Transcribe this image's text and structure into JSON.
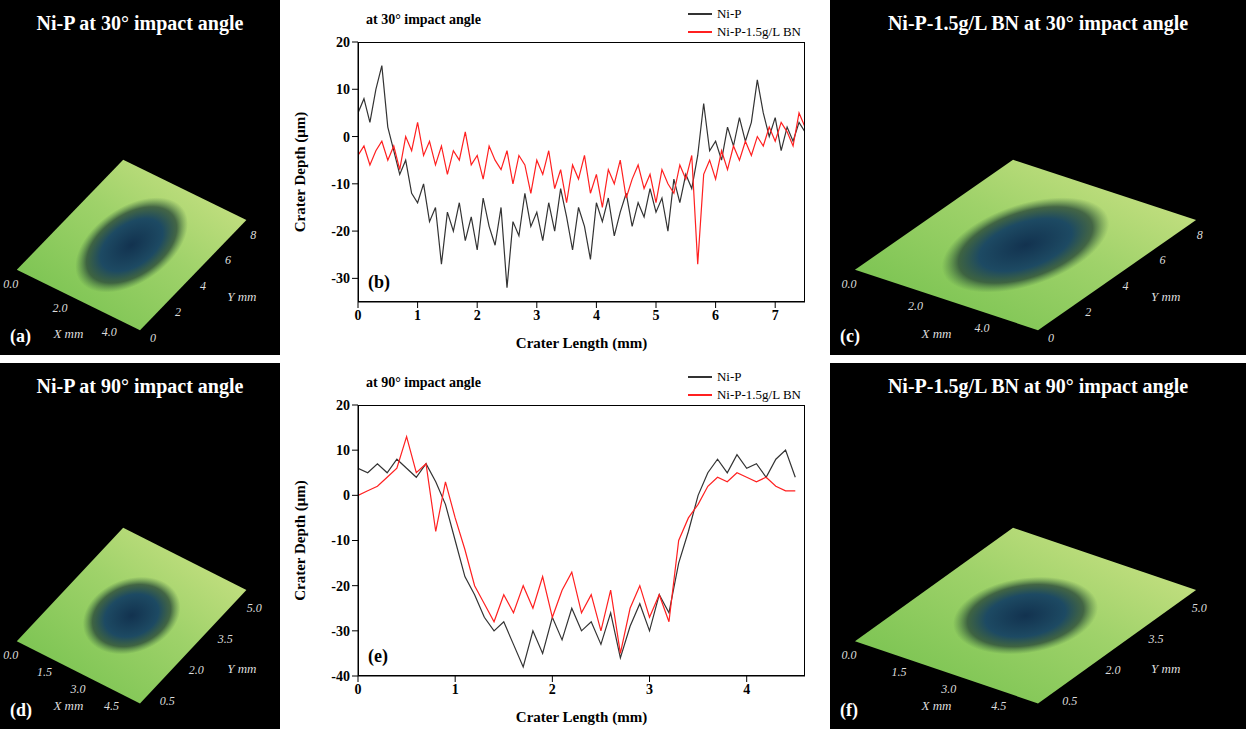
{
  "chart_data": [
    {
      "type": "surface_image",
      "panel": "(a)",
      "title": "Ni-P at 30° impact angle",
      "x_label": "X mm",
      "y_label": "Y mm",
      "xlim": [
        0,
        5
      ],
      "ylim": [
        0,
        8.5
      ],
      "xticks": [
        {
          "value": 0,
          "label": "0.0"
        },
        {
          "value": 2,
          "label": "2.0"
        },
        {
          "value": 4,
          "label": "4.0"
        }
      ],
      "yticks": [
        0,
        2,
        4,
        6,
        8
      ]
    },
    {
      "type": "line",
      "panel": "(b)",
      "annotation": "at 30° impact angle",
      "x_label": "Crater Length (mm)",
      "y_label": "Crater Depth (μm)",
      "xlim": [
        0,
        7.5
      ],
      "ylim": [
        -35,
        20
      ],
      "xticks": [
        0,
        1,
        2,
        3,
        4,
        5,
        6,
        7
      ],
      "yticks": [
        -30,
        -20,
        -10,
        0,
        10,
        20
      ],
      "legend": "top right",
      "x": [
        0,
        0.1,
        0.2,
        0.3,
        0.4,
        0.5,
        0.6,
        0.7,
        0.8,
        0.9,
        1.0,
        1.1,
        1.2,
        1.3,
        1.4,
        1.5,
        1.6,
        1.7,
        1.8,
        1.9,
        2.0,
        2.1,
        2.2,
        2.3,
        2.4,
        2.5,
        2.6,
        2.7,
        2.8,
        2.9,
        3.0,
        3.1,
        3.2,
        3.3,
        3.4,
        3.5,
        3.6,
        3.7,
        3.8,
        3.9,
        4.0,
        4.1,
        4.2,
        4.3,
        4.4,
        4.5,
        4.6,
        4.7,
        4.8,
        4.9,
        5.0,
        5.1,
        5.2,
        5.3,
        5.4,
        5.5,
        5.6,
        5.7,
        5.8,
        5.9,
        6.0,
        6.1,
        6.2,
        6.3,
        6.4,
        6.5,
        6.6,
        6.7,
        6.8,
        6.9,
        7.0,
        7.1,
        7.2,
        7.3,
        7.4,
        7.5
      ],
      "series": [
        {
          "name": "Ni-P",
          "color": "#333333",
          "values": [
            5,
            8,
            3,
            10,
            15,
            2,
            -3,
            -8,
            -5,
            -12,
            -14,
            -10,
            -18,
            -15,
            -27,
            -16,
            -20,
            -14,
            -22,
            -17,
            -24,
            -13,
            -19,
            -23,
            -15,
            -32,
            -18,
            -21,
            -12,
            -19,
            -16,
            -22,
            -14,
            -20,
            -11,
            -17,
            -24,
            -15,
            -19,
            -26,
            -14,
            -18,
            -13,
            -21,
            -16,
            -12,
            -19,
            -14,
            -17,
            -11,
            -16,
            -13,
            -20,
            -9,
            -14,
            -8,
            -11,
            -4,
            7,
            -3,
            -1,
            -5,
            2,
            -2,
            4,
            -1,
            3,
            12,
            5,
            0,
            4,
            -3,
            2,
            -1,
            3,
            1
          ]
        },
        {
          "name": "Ni-P-1.5g/L BN",
          "color": "#ff2020",
          "values": [
            -4,
            -2,
            -6,
            -3,
            -1,
            -5,
            -2,
            -7,
            0,
            -3,
            3,
            -4,
            -1,
            -6,
            -2,
            -8,
            -3,
            -5,
            1,
            -6,
            -4,
            -9,
            -2,
            -5,
            -7,
            -3,
            -10,
            -4,
            -6,
            -12,
            -5,
            -8,
            -3,
            -11,
            -7,
            -14,
            -6,
            -9,
            -4,
            -12,
            -8,
            -15,
            -7,
            -10,
            -5,
            -13,
            -9,
            -6,
            -11,
            -8,
            -14,
            -7,
            -10,
            -12,
            -6,
            -9,
            -4,
            -27,
            -8,
            -5,
            -9,
            -3,
            -7,
            -2,
            -5,
            -1,
            -4,
            0,
            -2,
            2,
            -1,
            3,
            1,
            -2,
            5,
            2
          ]
        }
      ]
    },
    {
      "type": "surface_image",
      "panel": "(c)",
      "title": "Ni-P-1.5g/L BN at 30° impact angle",
      "x_label": "X mm",
      "y_label": "Y mm",
      "xlim": [
        0,
        5.5
      ],
      "ylim": [
        0,
        8.5
      ],
      "xticks": [
        {
          "value": 0,
          "label": "0.0"
        },
        {
          "value": 2,
          "label": "2.0"
        },
        {
          "value": 4,
          "label": "4.0"
        }
      ],
      "yticks": [
        0,
        2,
        4,
        6,
        8
      ]
    },
    {
      "type": "surface_image",
      "panel": "(d)",
      "title": "Ni-P at 90° impact angle",
      "x_label": "X mm",
      "y_label": "Y mm",
      "xlim": [
        0,
        5.5
      ],
      "ylim": [
        0,
        5.5
      ],
      "xticks": [
        {
          "value": 0,
          "label": "0.0"
        },
        {
          "value": 1.5,
          "label": "1.5"
        },
        {
          "value": 3,
          "label": "3.0"
        },
        {
          "value": 4.5,
          "label": "4.5"
        }
      ],
      "yticks": [
        0.5,
        {
          "value": 2,
          "label": "2.0"
        },
        3.5,
        {
          "value": 5,
          "label": "5.0"
        }
      ]
    },
    {
      "type": "line",
      "panel": "(e)",
      "annotation": "at 90° impact angle",
      "x_label": "Crater Length (mm)",
      "y_label": "Crater Depth (μm)",
      "xlim": [
        0,
        4.6
      ],
      "ylim": [
        -40,
        20
      ],
      "xticks": [
        0,
        1,
        2,
        3,
        4
      ],
      "yticks": [
        -40,
        -30,
        -20,
        -10,
        0,
        10,
        20
      ],
      "legend": "top right",
      "x": [
        0,
        0.1,
        0.2,
        0.3,
        0.4,
        0.5,
        0.6,
        0.7,
        0.8,
        0.9,
        1.0,
        1.1,
        1.2,
        1.3,
        1.4,
        1.5,
        1.6,
        1.7,
        1.8,
        1.9,
        2.0,
        2.1,
        2.2,
        2.3,
        2.4,
        2.5,
        2.6,
        2.7,
        2.8,
        2.9,
        3.0,
        3.1,
        3.2,
        3.3,
        3.4,
        3.5,
        3.6,
        3.7,
        3.8,
        3.9,
        4.0,
        4.1,
        4.2,
        4.3,
        4.4,
        4.5
      ],
      "series": [
        {
          "name": "Ni-P",
          "color": "#333333",
          "values": [
            6,
            5,
            7,
            5,
            8,
            6,
            4,
            7,
            3,
            -2,
            -10,
            -18,
            -22,
            -27,
            -30,
            -28,
            -33,
            -38,
            -30,
            -35,
            -27,
            -32,
            -25,
            -30,
            -28,
            -33,
            -26,
            -36,
            -29,
            -24,
            -30,
            -22,
            -26,
            -15,
            -8,
            0,
            5,
            8,
            5,
            9,
            6,
            7,
            4,
            8,
            10,
            4
          ]
        },
        {
          "name": "Ni-P-1.5g/L BN",
          "color": "#ff2020",
          "values": [
            0,
            1,
            2,
            4,
            6,
            13,
            5,
            7,
            -8,
            3,
            -5,
            -12,
            -20,
            -24,
            -28,
            -22,
            -26,
            -20,
            -25,
            -18,
            -27,
            -21,
            -17,
            -26,
            -22,
            -30,
            -21,
            -35,
            -25,
            -20,
            -27,
            -22,
            -28,
            -10,
            -5,
            -2,
            2,
            4,
            3,
            5,
            4,
            3,
            4,
            2,
            1,
            1
          ]
        }
      ]
    },
    {
      "type": "surface_image",
      "panel": "(f)",
      "title": "Ni-P-1.5g/L BN at 90° impact angle",
      "x_label": "X mm",
      "y_label": "Y mm",
      "xlim": [
        0,
        5.5
      ],
      "ylim": [
        0,
        5.5
      ],
      "xticks": [
        {
          "value": 0,
          "label": "0.0"
        },
        {
          "value": 1.5,
          "label": "1.5"
        },
        {
          "value": 3,
          "label": "3.0"
        },
        {
          "value": 4.5,
          "label": "4.5"
        }
      ],
      "yticks": [
        0.5,
        {
          "value": 2,
          "label": "2.0"
        },
        3.5,
        {
          "value": 5,
          "label": "5.0"
        }
      ]
    }
  ]
}
